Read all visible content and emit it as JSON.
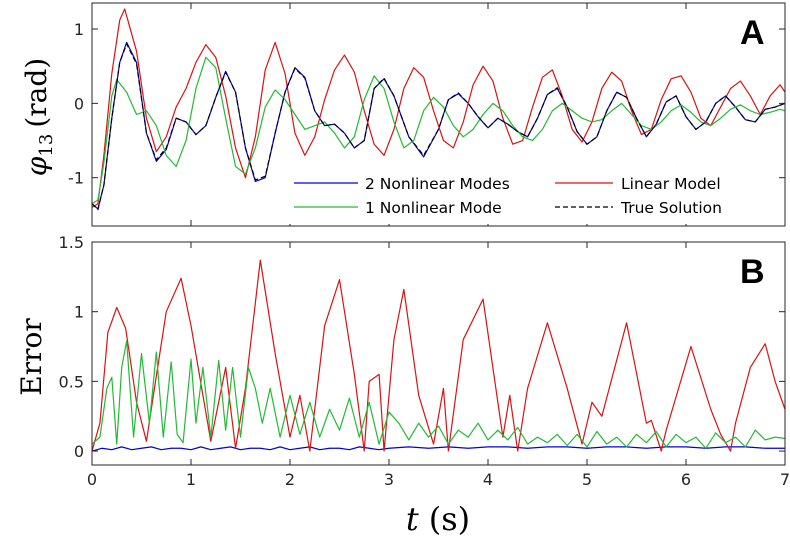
{
  "chart_data": [
    {
      "panel": "A",
      "type": "line",
      "ylabel": "φ13 (rad)",
      "ylabel_main": "φ",
      "ylabel_sub": "13",
      "ylabel_unit": "(rad)",
      "xlim": [
        0,
        7
      ],
      "ylim": [
        -1.65,
        1.35
      ],
      "yticks": [
        1,
        0,
        -1
      ],
      "ytick_labels": [
        "1",
        "0",
        "-1"
      ],
      "legend_placement": "bottom-right",
      "series": [
        {
          "name": "2 Nonlinear Modes",
          "color": "#0000dd",
          "dash": "",
          "x": [
            0,
            0.06,
            0.12,
            0.2,
            0.28,
            0.35,
            0.45,
            0.55,
            0.65,
            0.75,
            0.85,
            0.95,
            1.05,
            1.15,
            1.25,
            1.35,
            1.45,
            1.55,
            1.65,
            1.75,
            1.85,
            1.95,
            2.05,
            2.15,
            2.25,
            2.35,
            2.45,
            2.55,
            2.65,
            2.75,
            2.85,
            2.95,
            3.05,
            3.2,
            3.35,
            3.5,
            3.6,
            3.7,
            3.8,
            3.9,
            4.0,
            4.1,
            4.2,
            4.3,
            4.4,
            4.5,
            4.6,
            4.7,
            4.8,
            4.9,
            5.0,
            5.1,
            5.2,
            5.3,
            5.4,
            5.5,
            5.6,
            5.7,
            5.8,
            5.9,
            6.0,
            6.1,
            6.2,
            6.3,
            6.4,
            6.5,
            6.6,
            6.7,
            6.8,
            6.9,
            7.0
          ],
          "y": [
            -1.35,
            -1.42,
            -1.1,
            -0.2,
            0.55,
            0.82,
            0.55,
            -0.4,
            -0.78,
            -0.62,
            -0.2,
            -0.25,
            -0.42,
            -0.3,
            0.08,
            0.43,
            0.15,
            -0.6,
            -1.05,
            -1.0,
            -0.4,
            0.15,
            0.48,
            0.35,
            -0.1,
            -0.3,
            -0.28,
            -0.4,
            -0.6,
            -0.5,
            0.2,
            0.33,
            0.1,
            -0.45,
            -0.72,
            -0.35,
            0.05,
            0.13,
            0.0,
            -0.18,
            -0.33,
            -0.2,
            -0.28,
            -0.38,
            -0.45,
            -0.2,
            0.12,
            0.2,
            -0.05,
            -0.38,
            -0.55,
            -0.45,
            -0.1,
            0.15,
            0.08,
            -0.2,
            -0.45,
            -0.28,
            0.02,
            0.1,
            -0.18,
            -0.35,
            -0.25,
            0.0,
            0.1,
            -0.05,
            -0.22,
            -0.25,
            -0.08,
            -0.05,
            0.0
          ]
        },
        {
          "name": "Linear Model",
          "color": "#dd1111",
          "dash": "",
          "x": [
            0,
            0.06,
            0.12,
            0.2,
            0.28,
            0.33,
            0.45,
            0.55,
            0.65,
            0.75,
            0.85,
            0.95,
            1.05,
            1.15,
            1.25,
            1.35,
            1.45,
            1.55,
            1.65,
            1.75,
            1.85,
            1.95,
            2.05,
            2.15,
            2.25,
            2.35,
            2.45,
            2.55,
            2.65,
            2.75,
            2.85,
            2.95,
            3.05,
            3.15,
            3.25,
            3.35,
            3.45,
            3.55,
            3.65,
            3.75,
            3.85,
            3.95,
            4.05,
            4.15,
            4.25,
            4.35,
            4.45,
            4.55,
            4.65,
            4.75,
            4.85,
            4.95,
            5.05,
            5.15,
            5.25,
            5.35,
            5.45,
            5.55,
            5.65,
            5.75,
            5.85,
            5.95,
            6.05,
            6.15,
            6.25,
            6.35,
            6.45,
            6.55,
            6.65,
            6.75,
            6.85,
            6.95,
            7.0
          ],
          "y": [
            -1.4,
            -1.35,
            -0.7,
            0.4,
            1.12,
            1.27,
            0.7,
            -0.2,
            -0.65,
            -0.45,
            -0.05,
            0.2,
            0.55,
            0.79,
            0.62,
            0.1,
            -0.6,
            -1.0,
            -0.45,
            0.45,
            0.82,
            0.4,
            -0.4,
            -0.7,
            -0.45,
            0.05,
            0.45,
            0.65,
            0.42,
            -0.1,
            -0.55,
            -0.7,
            -0.35,
            0.2,
            0.48,
            0.35,
            -0.1,
            -0.5,
            -0.6,
            -0.25,
            0.25,
            0.5,
            0.3,
            -0.2,
            -0.55,
            -0.5,
            -0.05,
            0.35,
            0.45,
            0.1,
            -0.35,
            -0.52,
            -0.25,
            0.2,
            0.42,
            0.3,
            -0.1,
            -0.42,
            -0.35,
            0.05,
            0.33,
            0.37,
            0.15,
            -0.2,
            -0.3,
            -0.05,
            0.2,
            0.3,
            0.1,
            -0.15,
            0.1,
            0.25,
            0.15
          ]
        },
        {
          "name": "1 Nonlinear Mode",
          "color": "#22bb33",
          "dash": "",
          "x": [
            0,
            0.06,
            0.12,
            0.2,
            0.25,
            0.35,
            0.45,
            0.55,
            0.65,
            0.75,
            0.85,
            0.95,
            1.05,
            1.15,
            1.25,
            1.35,
            1.45,
            1.55,
            1.65,
            1.75,
            1.85,
            1.95,
            2.05,
            2.15,
            2.25,
            2.35,
            2.45,
            2.55,
            2.65,
            2.75,
            2.85,
            2.95,
            3.05,
            3.15,
            3.25,
            3.35,
            3.45,
            3.55,
            3.65,
            3.75,
            3.85,
            3.95,
            4.05,
            4.15,
            4.25,
            4.35,
            4.45,
            4.55,
            4.65,
            4.75,
            4.85,
            4.95,
            5.05,
            5.15,
            5.25,
            5.35,
            5.45,
            5.55,
            5.65,
            5.75,
            5.85,
            5.95,
            6.05,
            6.15,
            6.25,
            6.35,
            6.45,
            6.55,
            6.65,
            6.75,
            6.85,
            6.95,
            7.0
          ],
          "y": [
            -1.35,
            -1.3,
            -0.8,
            0.1,
            0.32,
            0.15,
            -0.15,
            -0.1,
            -0.3,
            -0.7,
            -0.85,
            -0.5,
            0.2,
            0.62,
            0.48,
            -0.2,
            -0.85,
            -0.95,
            -0.6,
            -0.05,
            0.18,
            0.05,
            -0.15,
            -0.35,
            -0.3,
            -0.25,
            -0.4,
            -0.6,
            -0.45,
            0.05,
            0.37,
            0.2,
            -0.25,
            -0.6,
            -0.5,
            -0.1,
            0.08,
            -0.05,
            -0.3,
            -0.45,
            -0.35,
            -0.15,
            0.0,
            -0.1,
            -0.3,
            -0.45,
            -0.5,
            -0.35,
            -0.1,
            0.0,
            -0.1,
            -0.2,
            -0.25,
            -0.22,
            -0.1,
            0.0,
            -0.15,
            -0.3,
            -0.35,
            -0.25,
            -0.1,
            -0.02,
            -0.12,
            -0.25,
            -0.3,
            -0.2,
            -0.08,
            -0.02,
            -0.1,
            -0.15,
            -0.12,
            -0.08,
            -0.1
          ]
        },
        {
          "name": "True Solution",
          "color": "#000000",
          "dash": "5,3",
          "x": [
            0,
            0.06,
            0.12,
            0.2,
            0.28,
            0.35,
            0.45,
            0.55,
            0.65,
            0.75,
            0.85,
            0.95,
            1.05,
            1.15,
            1.25,
            1.35,
            1.45,
            1.55,
            1.65,
            1.75,
            1.85,
            1.95,
            2.05,
            2.15,
            2.25,
            2.35,
            2.45,
            2.55,
            2.65,
            2.75,
            2.85,
            2.95,
            3.05,
            3.2,
            3.35,
            3.5,
            3.6,
            3.7,
            3.8,
            3.9,
            4.0,
            4.1,
            4.2,
            4.3,
            4.4,
            4.5,
            4.6,
            4.7,
            4.8,
            4.9,
            5.0,
            5.1,
            5.2,
            5.3,
            5.4,
            5.5,
            5.6,
            5.7,
            5.8,
            5.9,
            6.0,
            6.1,
            6.2,
            6.3,
            6.4,
            6.5,
            6.6,
            6.7,
            6.8,
            6.9,
            7.0
          ],
          "y": [
            -1.35,
            -1.43,
            -1.1,
            -0.2,
            0.55,
            0.8,
            0.53,
            -0.4,
            -0.76,
            -0.6,
            -0.2,
            -0.25,
            -0.42,
            -0.3,
            0.08,
            0.42,
            0.15,
            -0.6,
            -1.03,
            -0.98,
            -0.4,
            0.15,
            0.47,
            0.34,
            -0.1,
            -0.3,
            -0.28,
            -0.4,
            -0.6,
            -0.5,
            0.2,
            0.34,
            0.1,
            -0.45,
            -0.7,
            -0.35,
            0.05,
            0.14,
            0.0,
            -0.18,
            -0.33,
            -0.2,
            -0.28,
            -0.38,
            -0.45,
            -0.2,
            0.12,
            0.21,
            -0.05,
            -0.38,
            -0.55,
            -0.45,
            -0.1,
            0.15,
            0.08,
            -0.2,
            -0.45,
            -0.28,
            0.02,
            0.1,
            -0.18,
            -0.35,
            -0.25,
            0.0,
            0.1,
            -0.05,
            -0.22,
            -0.25,
            -0.08,
            -0.05,
            0.0
          ]
        }
      ]
    },
    {
      "panel": "B",
      "type": "line",
      "ylabel": "Error",
      "xlabel": "t (s)",
      "xlabel_var": "t",
      "xlabel_unit": "(s)",
      "xlim": [
        0,
        7
      ],
      "ylim": [
        -0.1,
        1.5
      ],
      "xticks": [
        0,
        1,
        2,
        3,
        4,
        5,
        6,
        7
      ],
      "xtick_labels": [
        "0",
        "1",
        "2",
        "3",
        "4",
        "5",
        "6",
        "7"
      ],
      "yticks": [
        1.5,
        1,
        0.5,
        0
      ],
      "ytick_labels": [
        "1.5",
        "1",
        "0.5",
        "0"
      ],
      "series": [
        {
          "name": "2 Nonlinear Modes",
          "color": "#0000dd",
          "x": [
            0,
            0.1,
            0.2,
            0.3,
            0.4,
            0.5,
            0.6,
            0.7,
            0.8,
            0.9,
            1.0,
            1.1,
            1.2,
            1.3,
            1.4,
            1.5,
            1.6,
            1.7,
            1.8,
            1.9,
            2.0,
            2.1,
            2.2,
            2.3,
            2.4,
            2.5,
            2.6,
            2.7,
            2.8,
            2.9,
            3.0,
            3.2,
            3.4,
            3.6,
            3.8,
            4.0,
            4.2,
            4.4,
            4.6,
            4.8,
            5.0,
            5.2,
            5.4,
            5.6,
            5.8,
            6.0,
            6.2,
            6.4,
            6.6,
            6.8,
            7.0
          ],
          "y": [
            0,
            0.02,
            0.01,
            0.03,
            0.01,
            0.02,
            0.03,
            0.01,
            0.02,
            0.02,
            0.01,
            0.03,
            0.01,
            0.02,
            0.03,
            0.01,
            0.02,
            0.02,
            0.01,
            0.03,
            0.01,
            0.02,
            0.03,
            0.01,
            0.02,
            0.02,
            0.01,
            0.03,
            0.02,
            0.01,
            0.02,
            0.03,
            0.02,
            0.03,
            0.02,
            0.03,
            0.03,
            0.02,
            0.03,
            0.03,
            0.02,
            0.03,
            0.03,
            0.02,
            0.03,
            0.03,
            0.02,
            0.03,
            0.03,
            0.02,
            0.02
          ]
        },
        {
          "name": "Linear Model",
          "color": "#dd1111",
          "x": [
            0,
            0.08,
            0.16,
            0.25,
            0.34,
            0.45,
            0.55,
            0.62,
            0.75,
            0.9,
            1.0,
            1.2,
            1.35,
            1.45,
            1.55,
            1.7,
            1.85,
            2.0,
            2.1,
            2.2,
            2.35,
            2.5,
            2.65,
            2.75,
            2.8,
            2.9,
            2.95,
            3.05,
            3.15,
            3.3,
            3.45,
            3.55,
            3.6,
            3.75,
            3.95,
            4.15,
            4.22,
            4.3,
            4.4,
            4.6,
            4.8,
            4.95,
            5.05,
            5.15,
            5.4,
            5.6,
            5.65,
            5.75,
            5.8,
            6.05,
            6.25,
            6.35,
            6.45,
            6.5,
            6.65,
            6.8,
            6.9,
            7.0
          ],
          "y": [
            0.0,
            0.2,
            0.85,
            1.03,
            0.88,
            0.35,
            0.07,
            0.4,
            1.0,
            1.24,
            0.9,
            0.07,
            0.6,
            0.02,
            0.45,
            1.37,
            0.7,
            0.1,
            0.4,
            0.0,
            0.9,
            1.23,
            0.55,
            0.0,
            0.5,
            0.55,
            0.0,
            0.8,
            1.16,
            0.4,
            0.05,
            0.45,
            0.0,
            0.8,
            1.09,
            0.1,
            0.4,
            0.0,
            0.45,
            0.92,
            0.45,
            0.05,
            0.35,
            0.25,
            0.92,
            0.2,
            0.22,
            0.0,
            0.15,
            0.75,
            0.3,
            0.12,
            0.0,
            0.2,
            0.6,
            0.77,
            0.5,
            0.3
          ]
        },
        {
          "name": "1 Nonlinear Mode",
          "color": "#22bb33",
          "x": [
            0,
            0.08,
            0.15,
            0.2,
            0.25,
            0.3,
            0.35,
            0.42,
            0.5,
            0.58,
            0.65,
            0.72,
            0.8,
            0.86,
            0.92,
            1.0,
            1.05,
            1.12,
            1.2,
            1.28,
            1.35,
            1.42,
            1.5,
            1.58,
            1.65,
            1.72,
            1.8,
            1.9,
            2.0,
            2.1,
            2.2,
            2.3,
            2.4,
            2.5,
            2.6,
            2.7,
            2.8,
            2.9,
            3.0,
            3.1,
            3.2,
            3.3,
            3.4,
            3.5,
            3.6,
            3.7,
            3.8,
            3.9,
            4.0,
            4.1,
            4.2,
            4.3,
            4.4,
            4.5,
            4.6,
            4.7,
            4.8,
            4.9,
            5.0,
            5.1,
            5.2,
            5.3,
            5.4,
            5.5,
            5.6,
            5.7,
            5.8,
            5.9,
            6.0,
            6.1,
            6.2,
            6.3,
            6.4,
            6.5,
            6.6,
            6.7,
            6.8,
            6.9,
            7.0
          ],
          "y": [
            0.05,
            0.1,
            0.45,
            0.53,
            0.05,
            0.6,
            0.79,
            0.1,
            0.7,
            0.2,
            0.71,
            0.1,
            0.64,
            0.12,
            0.06,
            0.66,
            0.2,
            0.6,
            0.1,
            0.65,
            0.15,
            0.6,
            0.1,
            0.6,
            0.45,
            0.2,
            0.45,
            0.1,
            0.4,
            0.12,
            0.35,
            0.1,
            0.3,
            0.15,
            0.38,
            0.1,
            0.35,
            0.05,
            0.28,
            0.2,
            0.08,
            0.2,
            0.1,
            0.18,
            0.05,
            0.15,
            0.1,
            0.2,
            0.08,
            0.15,
            0.08,
            0.17,
            0.05,
            0.1,
            0.06,
            0.12,
            0.04,
            0.12,
            0.03,
            0.14,
            0.05,
            0.1,
            0.03,
            0.12,
            0.06,
            0.14,
            0.03,
            0.12,
            0.06,
            0.1,
            0.02,
            0.13,
            0.06,
            0.1,
            0.03,
            0.15,
            0.08,
            0.1,
            0.09
          ]
        }
      ]
    }
  ],
  "panel_labels": {
    "a": "A",
    "b": "B"
  },
  "legend": [
    {
      "label": "2 Nonlinear Modes",
      "color": "#0000dd",
      "dash": ""
    },
    {
      "label": "Linear Model",
      "color": "#dd1111",
      "dash": ""
    },
    {
      "label": "1 Nonlinear Mode",
      "color": "#22bb33",
      "dash": ""
    },
    {
      "label": "True Solution",
      "color": "#000000",
      "dash": "5,3"
    }
  ]
}
